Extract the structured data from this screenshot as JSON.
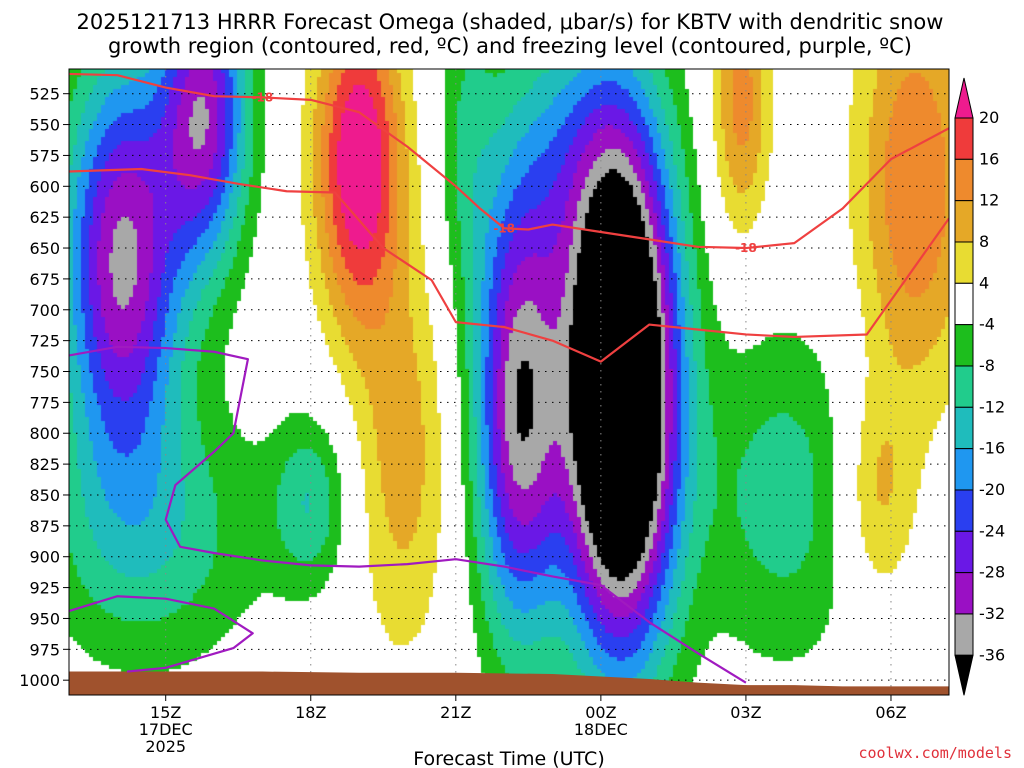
{
  "title": {
    "line1": "2025121713 HRRR Forecast Omega (shaded, μbar/s) for KBTV with dendritic snow",
    "line2": "growth region (contoured, red, ºC) and freezing level (contoured, purple, ºC)"
  },
  "credit": "coolwx.com/models",
  "chart_data": {
    "type": "heatmap",
    "title": "2025121713 HRRR Forecast Omega (shaded, μbar/s) for KBTV with dendritic snow growth region (contoured, red, ºC) and freezing level (contoured, purple, ºC)",
    "xlabel": "Forecast Time (UTC)",
    "ylabel": "",
    "y_inverted": true,
    "y_ticks": [
      525,
      550,
      575,
      600,
      625,
      650,
      675,
      700,
      725,
      750,
      775,
      800,
      825,
      850,
      875,
      900,
      925,
      950,
      975,
      1000
    ],
    "x_ticks": [
      {
        "hour": 15,
        "lines": [
          "15Z",
          "17DEC",
          "2025"
        ]
      },
      {
        "hour": 18,
        "lines": [
          "18Z"
        ]
      },
      {
        "hour": 21,
        "lines": [
          "21Z"
        ]
      },
      {
        "hour": 24,
        "lines": [
          "00Z",
          "18DEC"
        ]
      },
      {
        "hour": 27,
        "lines": [
          "03Z"
        ]
      },
      {
        "hour": 30,
        "lines": [
          "06Z"
        ]
      }
    ],
    "xlim": [
      13,
      31.2
    ],
    "ylim_hPa": [
      505,
      1012
    ],
    "colorbar": {
      "units": "μbar/s",
      "labels": [
        "20",
        "16",
        "12",
        "8",
        "4",
        "-4",
        "-8",
        "-12",
        "-16",
        "-20",
        "-24",
        "-28",
        "-32",
        "-36"
      ],
      "bins": [
        {
          "from": 20,
          "to": null,
          "color": "#ee1b8e"
        },
        {
          "from": 16,
          "to": 20,
          "color": "#ef3b3b"
        },
        {
          "from": 12,
          "to": 16,
          "color": "#ee8a2d"
        },
        {
          "from": 8,
          "to": 12,
          "color": "#e5a827"
        },
        {
          "from": 4,
          "to": 8,
          "color": "#e8dc32"
        },
        {
          "from": -4,
          "to": 4,
          "color": "#ffffff"
        },
        {
          "from": -8,
          "to": -4,
          "color": "#1dbe1d"
        },
        {
          "from": -12,
          "to": -8,
          "color": "#21cc8c"
        },
        {
          "from": -16,
          "to": -12,
          "color": "#1fbcbc"
        },
        {
          "from": -20,
          "to": -16,
          "color": "#1f97f0"
        },
        {
          "from": -24,
          "to": -20,
          "color": "#2a3ff0"
        },
        {
          "from": -28,
          "to": -24,
          "color": "#6a18e6"
        },
        {
          "from": -32,
          "to": -28,
          "color": "#9a10c4"
        },
        {
          "from": -36,
          "to": -32,
          "color": "#a8a8a8"
        },
        {
          "from": null,
          "to": -36,
          "color": "#000000"
        }
      ]
    },
    "omega_blobs": [
      {
        "name": "west-ascent",
        "t": 14.1,
        "p": 660,
        "rt": 1.2,
        "rp": 160,
        "v": -33
      },
      {
        "name": "west-ascent-low",
        "t": 14.7,
        "p": 880,
        "rt": 2.3,
        "rp": 110,
        "v": -11
      },
      {
        "name": "west-ascent-top",
        "t": 15.8,
        "p": 540,
        "rt": 0.9,
        "rp": 120,
        "v": -30
      },
      {
        "name": "early-descent",
        "t": 19.0,
        "p": 580,
        "rt": 0.9,
        "rp": 130,
        "v": 25
      },
      {
        "name": "descent-low",
        "t": 19.9,
        "p": 820,
        "rt": 1.0,
        "rp": 160,
        "v": 10
      },
      {
        "name": "green-band-upper",
        "t": 21.2,
        "p": 560,
        "rt": 0.6,
        "rp": 140,
        "v": -7
      },
      {
        "name": "low-ascent-18z",
        "t": 18.0,
        "p": 855,
        "rt": 0.8,
        "rp": 70,
        "v": -11
      },
      {
        "name": "mid-ascent-22z",
        "t": 22.3,
        "p": 780,
        "rt": 0.9,
        "rp": 180,
        "v": -34
      },
      {
        "name": "main-ascent",
        "t": 24.4,
        "p": 770,
        "rt": 1.15,
        "rp": 200,
        "v": -62
      },
      {
        "name": "upper-ascent",
        "t": 23.5,
        "p": 570,
        "rt": 1.6,
        "rp": 120,
        "v": -12
      },
      {
        "name": "late-descent-top",
        "t": 26.9,
        "p": 530,
        "rt": 0.6,
        "rp": 110,
        "v": 14
      },
      {
        "name": "late-ascent",
        "t": 27.8,
        "p": 850,
        "rt": 1.8,
        "rp": 140,
        "v": -10
      },
      {
        "name": "far-descent-top",
        "t": 30.5,
        "p": 600,
        "rt": 1.2,
        "rp": 170,
        "v": 16
      },
      {
        "name": "far-descent-low",
        "t": 29.7,
        "p": 850,
        "rt": 0.8,
        "rp": 90,
        "v": 10
      }
    ],
    "series": [
      {
        "name": "-12",
        "color": "#ef4040",
        "x": [
          13.0,
          14.5,
          15.5,
          16.5,
          17.5,
          18.5,
          19.5,
          20.5,
          21.0,
          22.0,
          23.0,
          24.0,
          25.0,
          26.0,
          27.0,
          28.0,
          29.5,
          31.2
        ],
        "y": [
          588,
          586,
          591,
          598,
          604,
          605,
          650,
          676,
          710,
          714,
          725,
          742,
          712,
          716,
          720,
          722,
          720,
          626
        ]
      },
      {
        "name": "-18",
        "color": "#ef4040",
        "x": [
          13.0,
          14.0,
          15.0,
          16.0,
          17.0,
          18.0,
          19.0,
          20.0,
          21.0,
          21.5,
          22.0,
          22.5,
          23.0,
          24.0,
          25.0,
          26.0,
          27.0,
          28.0,
          29.0,
          30.0,
          31.2
        ],
        "y": [
          509,
          510,
          520,
          527,
          528,
          530,
          540,
          568,
          600,
          618,
          634,
          635,
          631,
          637,
          643,
          649,
          650,
          646,
          618,
          578,
          553
        ]
      },
      {
        "name": "0",
        "color": "#a01ac0",
        "x": [
          13.0,
          14.0,
          15.0,
          16.0,
          16.7,
          16.4,
          16.0,
          15.2,
          15.0,
          15.3,
          16.0,
          17.0,
          18.0,
          19.0,
          20.0,
          21.0,
          22.0,
          23.0,
          24.0,
          25.0,
          26.0,
          27.0
        ],
        "y": [
          737,
          730,
          731,
          734,
          740,
          800,
          815,
          842,
          870,
          892,
          897,
          903,
          907,
          908,
          906,
          902,
          908,
          916,
          923,
          953,
          978,
          1002
        ]
      },
      {
        "name": "0",
        "color": "#a01ac0",
        "x": [
          13.0,
          14.0,
          15.0,
          16.0,
          16.8,
          16.4,
          15.0,
          14.2
        ],
        "y": [
          944,
          932,
          934,
          942,
          962,
          974,
          990,
          993
        ]
      }
    ],
    "contour_labels": [
      {
        "text": "-18",
        "x": 17.0,
        "y": 528
      },
      {
        "text": "-18",
        "x": 22.0,
        "y": 634
      },
      {
        "text": "-18",
        "x": 27.0,
        "y": 650
      }
    ],
    "terrain": {
      "color": "#a0522d",
      "x": [
        13.0,
        15.0,
        17.0,
        19.0,
        21.0,
        23.0,
        24.0,
        25.0,
        26.0,
        27.0,
        28.0,
        29.0,
        30.0,
        31.2
      ],
      "y": [
        993,
        993,
        993,
        994,
        994,
        995,
        997,
        999,
        1002,
        1004,
        1004,
        1005,
        1005,
        1005
      ]
    }
  }
}
